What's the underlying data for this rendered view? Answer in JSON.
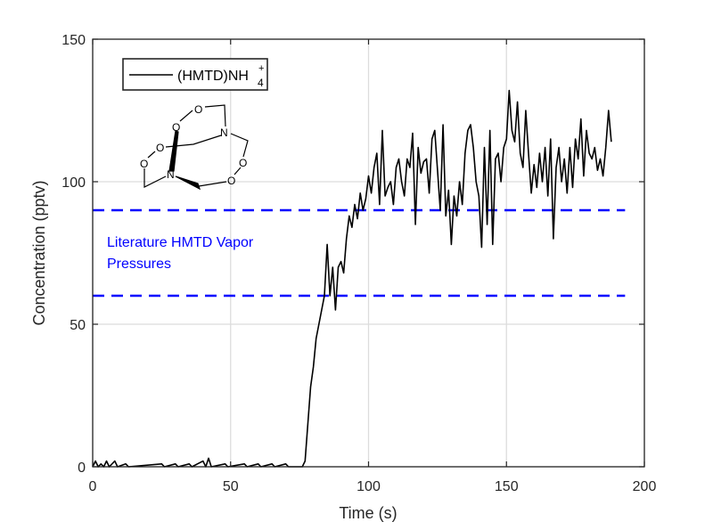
{
  "chart_data": {
    "type": "line",
    "xlabel": "Time (s)",
    "ylabel": "Concentration (pptv)",
    "xlim": [
      0,
      200
    ],
    "ylim": [
      0,
      150
    ],
    "xticks": [
      "0",
      "50",
      "100",
      "150",
      "200"
    ],
    "yticks": [
      "0",
      "50",
      "100",
      "150"
    ],
    "grid": true,
    "legend": {
      "placement": "top-left",
      "label_main": "(HMTD)NH",
      "label_sub": "4",
      "label_sup": "+"
    },
    "annotation": {
      "line1": "Literature HMTD Vapor",
      "line2": "Pressures",
      "color": "#0000ff"
    },
    "reference_lines": [
      {
        "y": 90,
        "x_range": [
          0,
          193
        ],
        "color": "#0000ff",
        "style": "dashed"
      },
      {
        "y": 60,
        "x_range": [
          0,
          193
        ],
        "color": "#0000ff",
        "style": "dashed"
      }
    ],
    "series": [
      {
        "color": "#000000",
        "points": [
          [
            0,
            0
          ],
          [
            1,
            2
          ],
          [
            2,
            0
          ],
          [
            3,
            1
          ],
          [
            4,
            0
          ],
          [
            5,
            2
          ],
          [
            6,
            0
          ],
          [
            7,
            1
          ],
          [
            8,
            2
          ],
          [
            9,
            0
          ],
          [
            12,
            1
          ],
          [
            13,
            0
          ],
          [
            25,
            1
          ],
          [
            26,
            0
          ],
          [
            30,
            1
          ],
          [
            31,
            0
          ],
          [
            35,
            1
          ],
          [
            36,
            0
          ],
          [
            40,
            2
          ],
          [
            41,
            0
          ],
          [
            42,
            3
          ],
          [
            43,
            0
          ],
          [
            48,
            1
          ],
          [
            49,
            0
          ],
          [
            55,
            1
          ],
          [
            56,
            0
          ],
          [
            60,
            1
          ],
          [
            61,
            0
          ],
          [
            65,
            1
          ],
          [
            66,
            0
          ],
          [
            70,
            1
          ],
          [
            71,
            0
          ],
          [
            76,
            0
          ],
          [
            77,
            2
          ],
          [
            78,
            15
          ],
          [
            79,
            28
          ],
          [
            80,
            35
          ],
          [
            81,
            45
          ],
          [
            82,
            50
          ],
          [
            83,
            55
          ],
          [
            84,
            60
          ],
          [
            85,
            78
          ],
          [
            86,
            60
          ],
          [
            87,
            70
          ],
          [
            88,
            55
          ],
          [
            89,
            70
          ],
          [
            90,
            72
          ],
          [
            91,
            68
          ],
          [
            92,
            80
          ],
          [
            93,
            88
          ],
          [
            94,
            84
          ],
          [
            95,
            92
          ],
          [
            96,
            87
          ],
          [
            97,
            96
          ],
          [
            98,
            90
          ],
          [
            99,
            94
          ],
          [
            100,
            102
          ],
          [
            101,
            96
          ],
          [
            102,
            105
          ],
          [
            103,
            110
          ],
          [
            104,
            92
          ],
          [
            105,
            118
          ],
          [
            106,
            95
          ],
          [
            107,
            98
          ],
          [
            108,
            100
          ],
          [
            109,
            92
          ],
          [
            110,
            105
          ],
          [
            111,
            108
          ],
          [
            112,
            100
          ],
          [
            113,
            95
          ],
          [
            114,
            108
          ],
          [
            115,
            105
          ],
          [
            116,
            117
          ],
          [
            117,
            85
          ],
          [
            118,
            112
          ],
          [
            119,
            103
          ],
          [
            120,
            107
          ],
          [
            121,
            108
          ],
          [
            122,
            96
          ],
          [
            123,
            115
          ],
          [
            124,
            118
          ],
          [
            125,
            104
          ],
          [
            126,
            90
          ],
          [
            127,
            120
          ],
          [
            128,
            88
          ],
          [
            129,
            97
          ],
          [
            130,
            78
          ],
          [
            131,
            95
          ],
          [
            132,
            88
          ],
          [
            133,
            100
          ],
          [
            134,
            92
          ],
          [
            135,
            110
          ],
          [
            136,
            118
          ],
          [
            137,
            120
          ],
          [
            138,
            112
          ],
          [
            139,
            100
          ],
          [
            140,
            95
          ],
          [
            141,
            77
          ],
          [
            142,
            112
          ],
          [
            143,
            85
          ],
          [
            144,
            118
          ],
          [
            145,
            78
          ],
          [
            146,
            108
          ],
          [
            147,
            110
          ],
          [
            148,
            100
          ],
          [
            149,
            112
          ],
          [
            150,
            115
          ],
          [
            151,
            132
          ],
          [
            152,
            118
          ],
          [
            153,
            114
          ],
          [
            154,
            128
          ],
          [
            155,
            110
          ],
          [
            156,
            105
          ],
          [
            157,
            125
          ],
          [
            158,
            110
          ],
          [
            159,
            96
          ],
          [
            160,
            106
          ],
          [
            161,
            98
          ],
          [
            162,
            110
          ],
          [
            163,
            100
          ],
          [
            164,
            112
          ],
          [
            165,
            95
          ],
          [
            166,
            115
          ],
          [
            167,
            80
          ],
          [
            168,
            105
          ],
          [
            169,
            112
          ],
          [
            170,
            100
          ],
          [
            171,
            108
          ],
          [
            172,
            96
          ],
          [
            173,
            112
          ],
          [
            174,
            98
          ],
          [
            175,
            115
          ],
          [
            176,
            108
          ],
          [
            177,
            122
          ],
          [
            178,
            102
          ],
          [
            179,
            118
          ],
          [
            180,
            110
          ],
          [
            181,
            108
          ],
          [
            182,
            112
          ],
          [
            183,
            104
          ],
          [
            184,
            108
          ],
          [
            185,
            102
          ],
          [
            186,
            112
          ],
          [
            187,
            125
          ],
          [
            188,
            114
          ]
        ]
      }
    ],
    "structure_atoms": [
      "O",
      "O",
      "O",
      "O",
      "O",
      "O",
      "N",
      "N"
    ]
  }
}
